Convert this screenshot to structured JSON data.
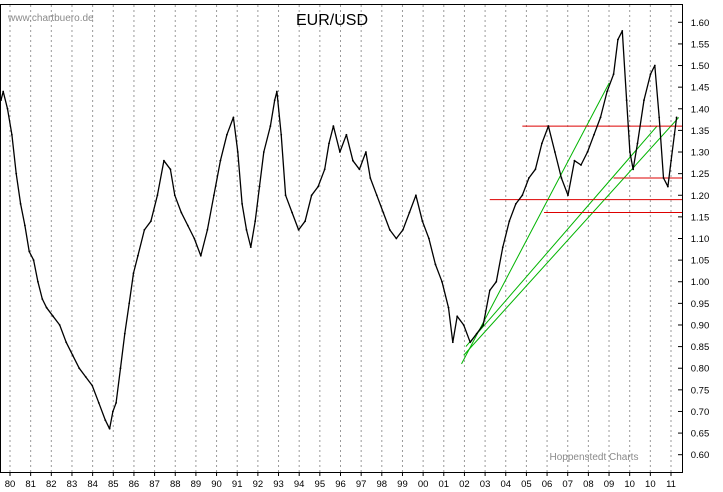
{
  "watermark": "www.chartbuero.de",
  "footer_source": "Hoppenstedt Charts",
  "chart_data": {
    "type": "line",
    "title": "EUR/USD",
    "xlabel": "",
    "ylabel": "",
    "ylim": [
      0.56,
      1.64
    ],
    "xlim": [
      1980.0,
      2011.35
    ],
    "y_axis_position": "right",
    "grid": "vertical dashed",
    "x_tick_labels": [
      "80",
      "81",
      "82",
      "83",
      "84",
      "85",
      "86",
      "87",
      "88",
      "89",
      "90",
      "91",
      "92",
      "93",
      "94",
      "95",
      "96",
      "97",
      "98",
      "99",
      "00",
      "01",
      "02",
      "03",
      "04",
      "05",
      "06",
      "07",
      "08",
      "09",
      "10",
      "10",
      "11"
    ],
    "y_tick_labels": [
      "0.60",
      "0.65",
      "0.70",
      "0.75",
      "0.80",
      "0.85",
      "0.90",
      "0.95",
      "1.00",
      "1.05",
      "1.10",
      "1.15",
      "1.20",
      "1.25",
      "1.30",
      "1.35",
      "1.40",
      "1.45",
      "1.50",
      "1.55",
      "1.60"
    ],
    "series": [
      {
        "color": "#000000",
        "x": [
          1980.0,
          1980.1,
          1980.3,
          1980.5,
          1980.7,
          1980.9,
          1981.1,
          1981.3,
          1981.5,
          1981.7,
          1981.9,
          1982.1,
          1982.4,
          1982.7,
          1983.0,
          1983.3,
          1983.6,
          1983.9,
          1984.2,
          1984.5,
          1984.8,
          1985.0,
          1985.15,
          1985.3,
          1985.5,
          1985.7,
          1985.9,
          1986.1,
          1986.3,
          1986.6,
          1986.9,
          1987.2,
          1987.5,
          1987.8,
          1988.0,
          1988.3,
          1988.6,
          1988.9,
          1989.2,
          1989.5,
          1989.8,
          1990.1,
          1990.4,
          1990.7,
          1990.9,
          1991.1,
          1991.3,
          1991.5,
          1991.7,
          1991.9,
          1992.1,
          1992.4,
          1992.6,
          1992.7,
          1992.9,
          1993.1,
          1993.4,
          1993.7,
          1994.0,
          1994.3,
          1994.6,
          1994.9,
          1995.1,
          1995.3,
          1995.6,
          1995.9,
          1996.2,
          1996.5,
          1996.8,
          1997.0,
          1997.3,
          1997.6,
          1997.9,
          1998.2,
          1998.5,
          1998.8,
          1999.1,
          1999.4,
          1999.7,
          2000.0,
          2000.3,
          2000.6,
          2000.8,
          2001.0,
          2001.3,
          2001.6,
          2001.9,
          2002.2,
          2002.5,
          2002.8,
          2003.1,
          2003.4,
          2003.7,
          2004.0,
          2004.3,
          2004.6,
          2004.9,
          2005.2,
          2005.5,
          2005.8,
          2006.1,
          2006.4,
          2006.7,
          2007.0,
          2007.3,
          2007.6,
          2007.9,
          2008.2,
          2008.4,
          2008.6,
          2008.8,
          2008.95,
          2009.1,
          2009.3,
          2009.6,
          2009.9,
          2010.1,
          2010.3,
          2010.5,
          2010.7,
          2010.85,
          2011.0,
          2011.1
        ],
        "y": [
          1.42,
          1.44,
          1.4,
          1.34,
          1.25,
          1.18,
          1.13,
          1.07,
          1.05,
          1.0,
          0.96,
          0.94,
          0.92,
          0.9,
          0.86,
          0.83,
          0.8,
          0.78,
          0.76,
          0.72,
          0.68,
          0.66,
          0.7,
          0.72,
          0.8,
          0.88,
          0.95,
          1.02,
          1.06,
          1.12,
          1.14,
          1.2,
          1.28,
          1.26,
          1.2,
          1.16,
          1.13,
          1.1,
          1.06,
          1.12,
          1.2,
          1.28,
          1.34,
          1.38,
          1.3,
          1.18,
          1.12,
          1.08,
          1.14,
          1.22,
          1.3,
          1.36,
          1.42,
          1.44,
          1.34,
          1.2,
          1.16,
          1.12,
          1.14,
          1.2,
          1.22,
          1.26,
          1.32,
          1.36,
          1.3,
          1.34,
          1.28,
          1.26,
          1.3,
          1.24,
          1.2,
          1.16,
          1.12,
          1.1,
          1.12,
          1.16,
          1.2,
          1.14,
          1.1,
          1.04,
          1.0,
          0.94,
          0.86,
          0.92,
          0.9,
          0.86,
          0.88,
          0.9,
          0.98,
          1.0,
          1.08,
          1.14,
          1.18,
          1.2,
          1.24,
          1.26,
          1.32,
          1.36,
          1.3,
          1.24,
          1.2,
          1.28,
          1.27,
          1.3,
          1.34,
          1.38,
          1.44,
          1.48,
          1.56,
          1.58,
          1.42,
          1.3,
          1.26,
          1.32,
          1.42,
          1.48,
          1.5,
          1.38,
          1.24,
          1.22,
          1.28,
          1.34,
          1.38
        ]
      }
    ],
    "trendlines": [
      {
        "color": "#00b400",
        "x": [
          2001.2,
          2008.0
        ],
        "y": [
          0.81,
          1.46
        ]
      },
      {
        "color": "#00b400",
        "x": [
          2001.3,
          2011.2
        ],
        "y": [
          0.83,
          1.38
        ]
      },
      {
        "color": "#00b400",
        "x": [
          2001.4,
          2010.2
        ],
        "y": [
          0.85,
          1.36
        ]
      }
    ],
    "horizontal_lines": [
      {
        "color": "#dd0000",
        "y": 1.36,
        "x_from": 2004.0,
        "x_to": 2011.35
      },
      {
        "color": "#dd0000",
        "y": 1.24,
        "x_from": 2008.2,
        "x_to": 2011.35
      },
      {
        "color": "#dd0000",
        "y": 1.19,
        "x_from": 2002.5,
        "x_to": 2011.35
      },
      {
        "color": "#dd0000",
        "y": 1.16,
        "x_from": 2005.0,
        "x_to": 2011.35
      }
    ]
  }
}
